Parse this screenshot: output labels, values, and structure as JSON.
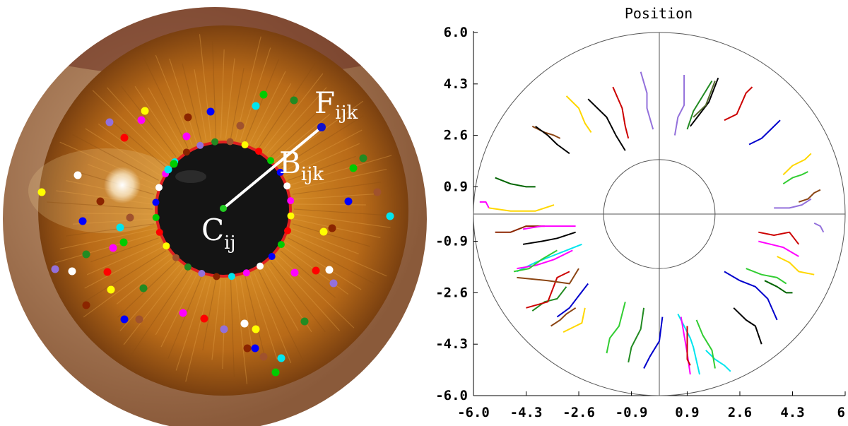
{
  "left_panel": {
    "labels": {
      "center": {
        "main": "C",
        "sub": "ij"
      },
      "boundary": {
        "main": "B",
        "sub": "ijk"
      },
      "feature": {
        "main": "F",
        "sub": "ijk"
      }
    },
    "colors": {
      "pupil_boundary": "#e02020",
      "center_point": "#22cc22",
      "feature_point": "#1010cc",
      "connector": "#ffffff",
      "iris": "#c9781c",
      "pupil": "#141414"
    },
    "feature_dot_colors": [
      "#ffff00",
      "#ff0000",
      "#00cc00",
      "#0000ff",
      "#ffffff",
      "#ff00ff",
      "#00e5ee",
      "#8b2500",
      "#9370db",
      "#228b22",
      "#a0522d"
    ]
  },
  "chart_data": {
    "type": "line",
    "title": "Position",
    "xlim": [
      -6.0,
      6.0
    ],
    "ylim": [
      -6.0,
      6.0
    ],
    "x_ticks": [
      -6.0,
      -4.3,
      -2.6,
      -0.9,
      0.9,
      2.6,
      4.3,
      6.0
    ],
    "y_ticks": [
      6.0,
      4.3,
      2.6,
      0.9,
      -0.9,
      -2.6,
      -4.3,
      -6.0
    ],
    "x_tick_labels": [
      "-6.0",
      "-4.3",
      "-2.6",
      "-0.9",
      "0.9",
      "2.6",
      "4.3",
      "6."
    ],
    "y_tick_labels": [
      "6.0",
      "4.3",
      "2.6",
      "0.9",
      "-0.9",
      "-2.6",
      "-4.3",
      "-6.0"
    ],
    "circles": [
      {
        "cx": 0,
        "cy": 0,
        "r": 6.0
      },
      {
        "cx": 0,
        "cy": 0,
        "r": 1.8
      }
    ],
    "axes_lines": true,
    "series": [
      {
        "color": "#9370db",
        "points": [
          [
            -0.6,
            4.7
          ],
          [
            -0.4,
            4.0
          ],
          [
            -0.4,
            3.5
          ],
          [
            -0.2,
            2.8
          ]
        ]
      },
      {
        "color": "#cc0000",
        "points": [
          [
            -1.5,
            4.2
          ],
          [
            -1.2,
            3.5
          ],
          [
            -1.1,
            2.9
          ],
          [
            -1.0,
            2.5
          ]
        ]
      },
      {
        "color": "#000000",
        "points": [
          [
            -2.3,
            3.8
          ],
          [
            -1.7,
            3.2
          ],
          [
            -1.4,
            2.6
          ],
          [
            -1.1,
            2.1
          ]
        ]
      },
      {
        "color": "#ffd700",
        "points": [
          [
            -3.0,
            3.9
          ],
          [
            -2.6,
            3.5
          ],
          [
            -2.4,
            3.0
          ],
          [
            -2.2,
            2.7
          ]
        ]
      },
      {
        "color": "#8b4513",
        "points": [
          [
            -4.1,
            2.9
          ],
          [
            -3.7,
            2.7
          ],
          [
            -3.4,
            2.6
          ],
          [
            -3.2,
            2.5
          ]
        ]
      },
      {
        "color": "#000000",
        "points": [
          [
            -4.0,
            2.9
          ],
          [
            -3.6,
            2.6
          ],
          [
            -3.3,
            2.3
          ],
          [
            -2.9,
            2.0
          ]
        ]
      },
      {
        "color": "#006400",
        "points": [
          [
            -5.3,
            1.2
          ],
          [
            -4.8,
            1.0
          ],
          [
            -4.3,
            0.9
          ],
          [
            -4.0,
            0.9
          ]
        ]
      },
      {
        "color": "#ff00ff",
        "points": [
          [
            -5.8,
            0.4
          ],
          [
            -5.6,
            0.4
          ],
          [
            -5.5,
            0.2
          ]
        ]
      },
      {
        "color": "#ffd700",
        "points": [
          [
            -5.5,
            0.2
          ],
          [
            -4.8,
            0.1
          ],
          [
            -4.0,
            0.1
          ],
          [
            -3.4,
            0.3
          ]
        ]
      },
      {
        "color": "#9370db",
        "points": [
          [
            0.5,
            2.6
          ],
          [
            0.6,
            3.2
          ],
          [
            0.8,
            3.6
          ],
          [
            0.8,
            4.6
          ]
        ]
      },
      {
        "color": "#000000",
        "points": [
          [
            1.0,
            2.9
          ],
          [
            1.3,
            3.3
          ],
          [
            1.6,
            3.7
          ],
          [
            1.9,
            4.5
          ]
        ]
      },
      {
        "color": "#228b22",
        "points": [
          [
            0.9,
            2.8
          ],
          [
            1.1,
            3.4
          ],
          [
            1.4,
            3.9
          ],
          [
            1.7,
            4.4
          ]
        ]
      },
      {
        "color": "#556b2f",
        "points": [
          [
            1.1,
            3.2
          ],
          [
            1.5,
            3.6
          ],
          [
            1.8,
            4.4
          ]
        ]
      },
      {
        "color": "#cc0000",
        "points": [
          [
            2.1,
            3.1
          ],
          [
            2.5,
            3.3
          ],
          [
            2.8,
            4.0
          ],
          [
            3.0,
            4.2
          ]
        ]
      },
      {
        "color": "#0000cc",
        "points": [
          [
            2.9,
            2.3
          ],
          [
            3.3,
            2.5
          ],
          [
            3.6,
            2.8
          ],
          [
            3.9,
            3.1
          ]
        ]
      },
      {
        "color": "#ffd700",
        "points": [
          [
            4.0,
            1.3
          ],
          [
            4.3,
            1.6
          ],
          [
            4.7,
            1.8
          ],
          [
            4.9,
            2.0
          ]
        ]
      },
      {
        "color": "#32cd32",
        "points": [
          [
            4.0,
            1.0
          ],
          [
            4.3,
            1.2
          ],
          [
            4.6,
            1.3
          ],
          [
            4.8,
            1.4
          ]
        ]
      },
      {
        "color": "#8b4513",
        "points": [
          [
            4.5,
            0.4
          ],
          [
            4.8,
            0.5
          ],
          [
            5.0,
            0.7
          ],
          [
            5.2,
            0.8
          ]
        ]
      },
      {
        "color": "#9370db",
        "points": [
          [
            3.7,
            0.2
          ],
          [
            4.2,
            0.2
          ],
          [
            4.6,
            0.3
          ],
          [
            4.9,
            0.5
          ]
        ]
      },
      {
        "color": "#9370db",
        "points": [
          [
            5.0,
            -0.3
          ],
          [
            5.2,
            -0.4
          ],
          [
            5.3,
            -0.6
          ]
        ]
      },
      {
        "color": "#cc0000",
        "points": [
          [
            3.2,
            -0.6
          ],
          [
            3.7,
            -0.7
          ],
          [
            4.2,
            -0.6
          ],
          [
            4.5,
            -1.0
          ]
        ]
      },
      {
        "color": "#ff00ff",
        "points": [
          [
            3.2,
            -0.9
          ],
          [
            3.6,
            -1.0
          ],
          [
            4.0,
            -1.1
          ],
          [
            4.5,
            -1.4
          ]
        ]
      },
      {
        "color": "#ffd700",
        "points": [
          [
            3.8,
            -1.4
          ],
          [
            4.2,
            -1.6
          ],
          [
            4.5,
            -1.9
          ],
          [
            5.0,
            -2.0
          ]
        ]
      },
      {
        "color": "#32cd32",
        "points": [
          [
            2.8,
            -1.8
          ],
          [
            3.3,
            -2.0
          ],
          [
            3.8,
            -2.1
          ],
          [
            4.1,
            -2.3
          ]
        ]
      },
      {
        "color": "#006400",
        "points": [
          [
            3.4,
            -2.2
          ],
          [
            3.8,
            -2.4
          ],
          [
            4.1,
            -2.6
          ],
          [
            4.3,
            -2.6
          ]
        ]
      },
      {
        "color": "#0000cc",
        "points": [
          [
            2.1,
            -1.9
          ],
          [
            2.6,
            -2.2
          ],
          [
            3.1,
            -2.4
          ],
          [
            3.5,
            -2.8
          ],
          [
            3.8,
            -3.5
          ]
        ]
      },
      {
        "color": "#000000",
        "points": [
          [
            2.4,
            -3.1
          ],
          [
            2.8,
            -3.5
          ],
          [
            3.1,
            -3.7
          ],
          [
            3.3,
            -4.3
          ]
        ]
      },
      {
        "color": "#00e5ee",
        "points": [
          [
            0.6,
            -3.3
          ],
          [
            0.8,
            -3.7
          ],
          [
            1.0,
            -4.1
          ],
          [
            1.1,
            -4.4
          ],
          [
            1.3,
            -5.3
          ]
        ]
      },
      {
        "color": "#ff00ff",
        "points": [
          [
            0.7,
            -3.4
          ],
          [
            0.8,
            -4.0
          ],
          [
            0.9,
            -4.6
          ],
          [
            1.0,
            -5.3
          ]
        ]
      },
      {
        "color": "#cc0000",
        "points": [
          [
            0.9,
            -3.7
          ],
          [
            0.9,
            -4.2
          ],
          [
            0.9,
            -4.8
          ],
          [
            1.0,
            -5.0
          ]
        ]
      },
      {
        "color": "#00e5ee",
        "points": [
          [
            1.5,
            -4.5
          ],
          [
            1.8,
            -4.8
          ],
          [
            2.1,
            -5.0
          ],
          [
            2.3,
            -5.2
          ]
        ]
      },
      {
        "color": "#32cd32",
        "points": [
          [
            1.2,
            -3.5
          ],
          [
            1.4,
            -4.0
          ],
          [
            1.7,
            -4.5
          ],
          [
            1.8,
            -5.1
          ]
        ]
      },
      {
        "color": "#0000cc",
        "points": [
          [
            0.1,
            -3.4
          ],
          [
            0.0,
            -4.2
          ],
          [
            -0.3,
            -4.7
          ],
          [
            -0.5,
            -5.1
          ]
        ]
      },
      {
        "color": "#228b22",
        "points": [
          [
            -0.5,
            -3.1
          ],
          [
            -0.6,
            -3.8
          ],
          [
            -0.9,
            -4.4
          ],
          [
            -1.0,
            -4.9
          ]
        ]
      },
      {
        "color": "#32cd32",
        "points": [
          [
            -1.1,
            -2.9
          ],
          [
            -1.3,
            -3.7
          ],
          [
            -1.6,
            -4.1
          ],
          [
            -1.7,
            -4.6
          ]
        ]
      },
      {
        "color": "#ffd700",
        "points": [
          [
            -2.4,
            -3.1
          ],
          [
            -2.5,
            -3.6
          ],
          [
            -2.7,
            -3.7
          ],
          [
            -3.1,
            -3.9
          ]
        ]
      },
      {
        "color": "#8b4513",
        "points": [
          [
            -2.7,
            -3.1
          ],
          [
            -3.0,
            -3.3
          ],
          [
            -3.2,
            -3.5
          ],
          [
            -3.5,
            -3.7
          ]
        ]
      },
      {
        "color": "#0000cc",
        "points": [
          [
            -2.3,
            -2.3
          ],
          [
            -2.6,
            -2.7
          ],
          [
            -2.9,
            -3.1
          ],
          [
            -3.3,
            -3.4
          ]
        ]
      },
      {
        "color": "#228b22",
        "points": [
          [
            -3.0,
            -2.4
          ],
          [
            -3.3,
            -2.8
          ],
          [
            -3.7,
            -2.9
          ],
          [
            -4.1,
            -3.2
          ]
        ]
      },
      {
        "color": "#cc0000",
        "points": [
          [
            -2.9,
            -1.9
          ],
          [
            -3.3,
            -2.1
          ],
          [
            -3.6,
            -2.9
          ],
          [
            -4.3,
            -3.1
          ]
        ]
      },
      {
        "color": "#8b4513",
        "points": [
          [
            -2.6,
            -1.8
          ],
          [
            -2.9,
            -2.3
          ],
          [
            -3.6,
            -2.2
          ],
          [
            -4.6,
            -2.1
          ]
        ]
      },
      {
        "color": "#00e5ee",
        "points": [
          [
            -2.5,
            -1.0
          ],
          [
            -3.0,
            -1.2
          ],
          [
            -3.5,
            -1.4
          ],
          [
            -4.0,
            -1.6
          ],
          [
            -4.6,
            -1.9
          ]
        ]
      },
      {
        "color": "#ff00ff",
        "points": [
          [
            -2.8,
            -1.2
          ],
          [
            -3.4,
            -1.5
          ],
          [
            -4.0,
            -1.7
          ],
          [
            -4.6,
            -1.8
          ]
        ]
      },
      {
        "color": "#32cd32",
        "points": [
          [
            -3.3,
            -1.2
          ],
          [
            -3.8,
            -1.5
          ],
          [
            -4.2,
            -1.8
          ],
          [
            -4.7,
            -1.9
          ]
        ]
      },
      {
        "color": "#000000",
        "points": [
          [
            -2.7,
            -0.6
          ],
          [
            -3.3,
            -0.8
          ],
          [
            -3.8,
            -0.9
          ],
          [
            -4.4,
            -1.0
          ]
        ]
      },
      {
        "color": "#8b2500",
        "points": [
          [
            -3.7,
            -0.4
          ],
          [
            -4.3,
            -0.4
          ],
          [
            -4.8,
            -0.6
          ],
          [
            -5.3,
            -0.6
          ]
        ]
      },
      {
        "color": "#ff00ff",
        "points": [
          [
            -2.7,
            -0.4
          ],
          [
            -3.2,
            -0.4
          ],
          [
            -3.8,
            -0.4
          ],
          [
            -4.4,
            -0.5
          ]
        ]
      }
    ]
  }
}
